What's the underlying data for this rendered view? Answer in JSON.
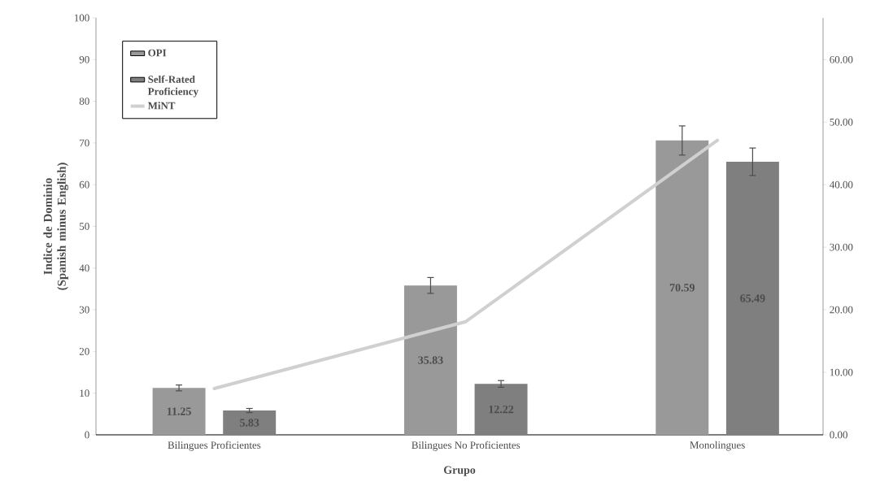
{
  "chart_data": {
    "type": "bar",
    "xlabel": "Grupo",
    "ylabel": "Indice de Dominio (Spanish minus English)",
    "categories": [
      "Bilingues Proficientes",
      "Bilingues No Proficientes",
      "Monolingues"
    ],
    "series": [
      {
        "name": "OPI",
        "color": "#999999",
        "values": [
          11.25,
          35.83,
          70.59
        ],
        "errors": [
          0.7,
          1.9,
          3.5
        ],
        "value_labels": [
          "11.25",
          "35.83",
          "70.59"
        ]
      },
      {
        "name": "Self-Rated Proficiency",
        "color": "#7f7f7f",
        "values": [
          5.83,
          12.22,
          65.49
        ],
        "errors": [
          0.5,
          0.8,
          3.3
        ],
        "value_labels": [
          "5.83",
          "12.22",
          "65.49"
        ]
      },
      {
        "name": "MiNT",
        "type": "line",
        "axis": "y2",
        "color": "#d0d0d0",
        "values": [
          7.4,
          18.1,
          47.1
        ]
      }
    ],
    "ylim": [
      0,
      100
    ],
    "yticks": [
      0,
      10,
      20,
      30,
      40,
      50,
      60,
      70,
      80,
      90,
      100
    ],
    "y2lim": [
      0,
      66.67
    ],
    "y2ticks": [
      {
        "value": 0,
        "label": "0.00"
      },
      {
        "value": 10,
        "label": "10.00"
      },
      {
        "value": 20,
        "label": "20.00"
      },
      {
        "value": 30,
        "label": "30.00"
      },
      {
        "value": 40,
        "label": "40.00"
      },
      {
        "value": 50,
        "label": "50.00"
      },
      {
        "value": 60,
        "label": "60.00"
      }
    ],
    "legend": "top left"
  }
}
